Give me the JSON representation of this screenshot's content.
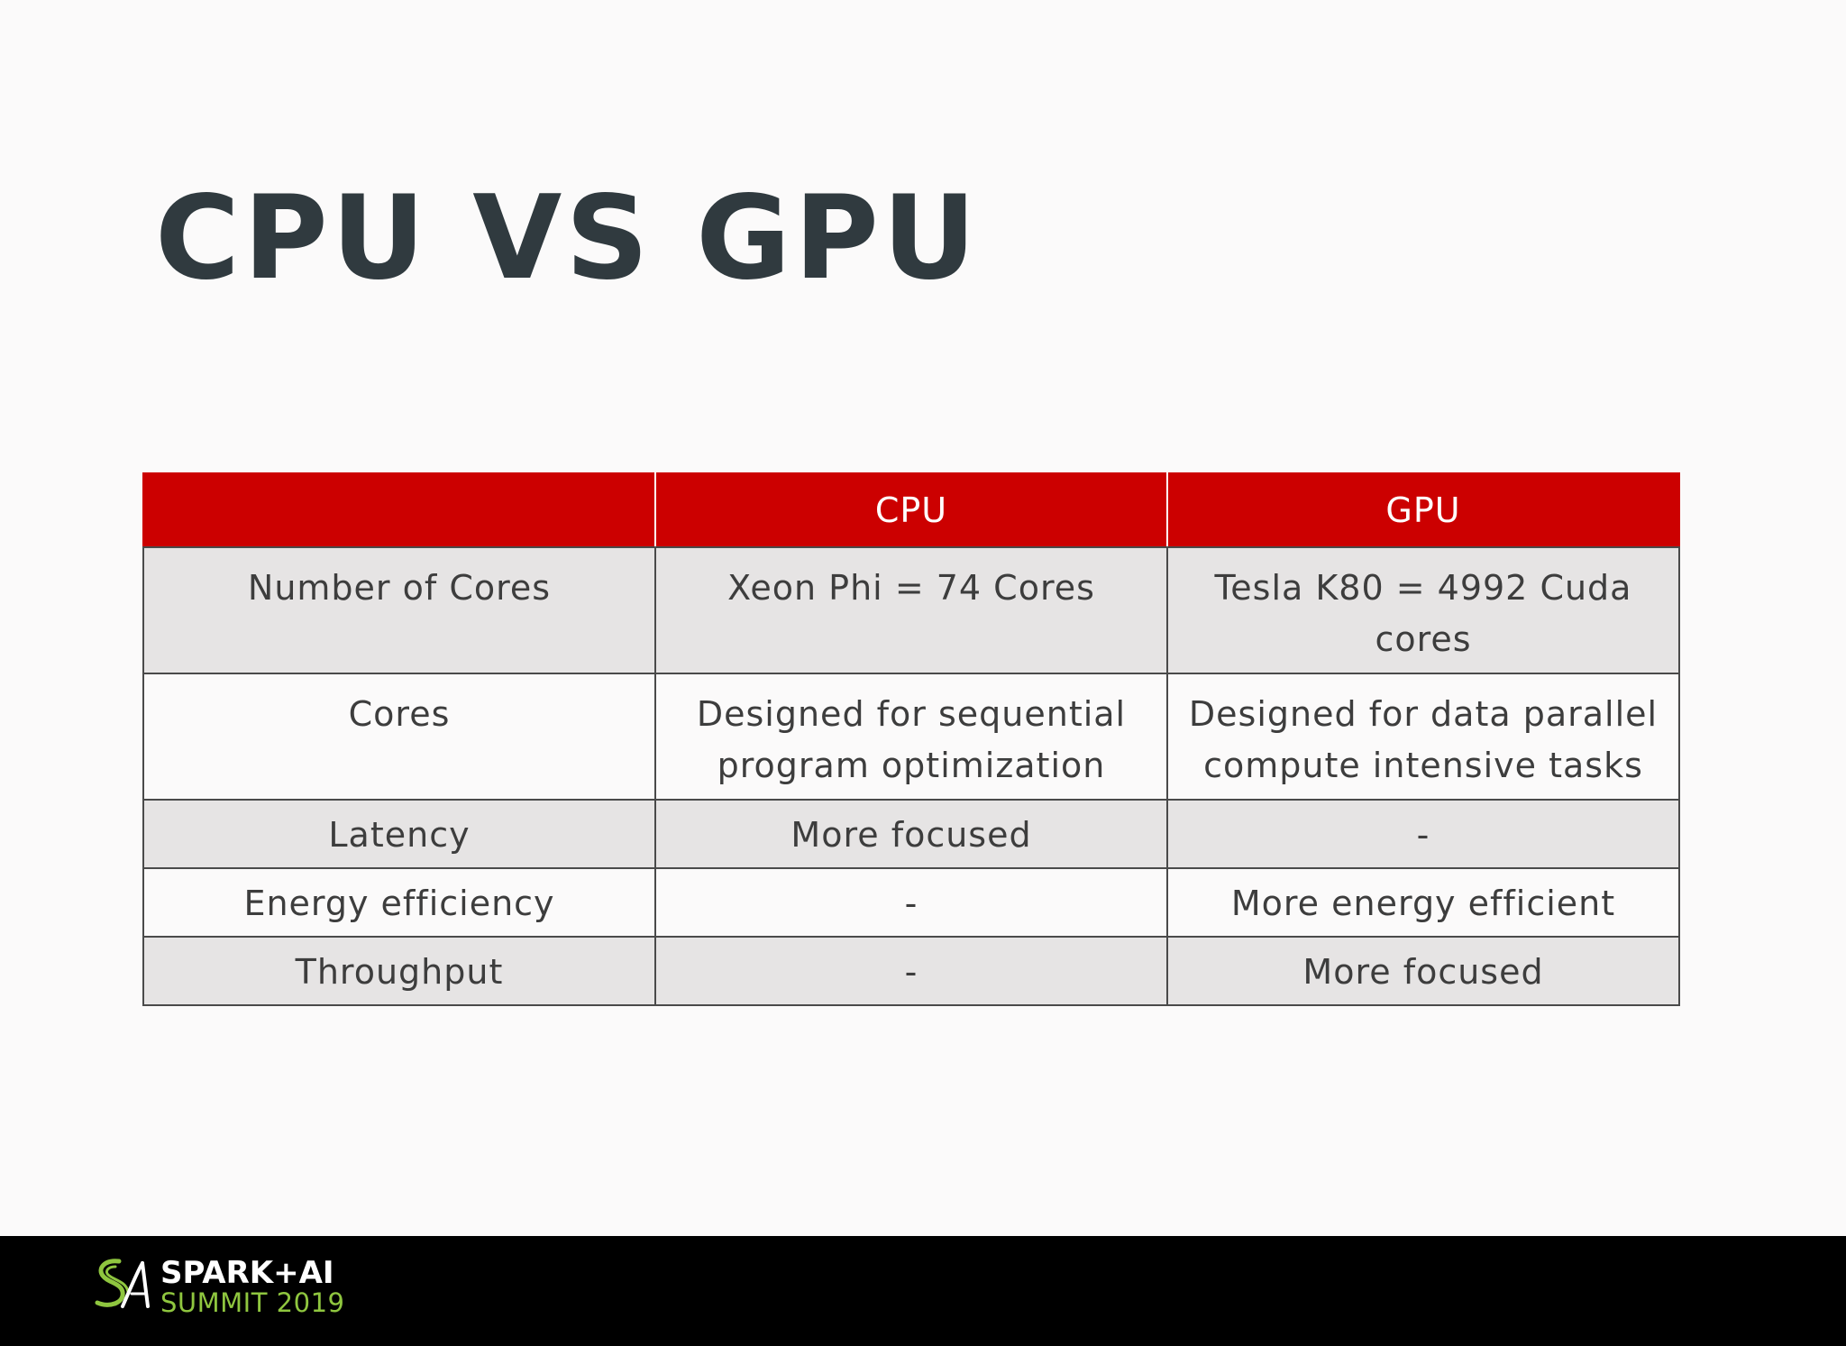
{
  "slide": {
    "title": "CPU VS GPU"
  },
  "table": {
    "header": [
      "",
      "CPU",
      "GPU"
    ],
    "rows": [
      [
        "Number of Cores",
        "Xeon Phi = 74 Cores",
        "Tesla K80 = 4992 Cuda cores"
      ],
      [
        "Cores",
        "Designed for sequential program optimization",
        "Designed for data parallel compute intensive tasks"
      ],
      [
        "Latency",
        "More focused",
        "-"
      ],
      [
        "Energy efficiency",
        "-",
        "More energy efficient"
      ],
      [
        "Throughput",
        "-",
        "More focused"
      ]
    ]
  },
  "footer": {
    "logo_line1": "SPARK+AI",
    "logo_line2": "SUMMIT 2019"
  },
  "colors": {
    "header_red": "#cc0000",
    "title_text": "#303a3f",
    "row_shade": "#e6e4e4",
    "footer_bg": "#000000",
    "logo_green": "#8fc63f"
  }
}
